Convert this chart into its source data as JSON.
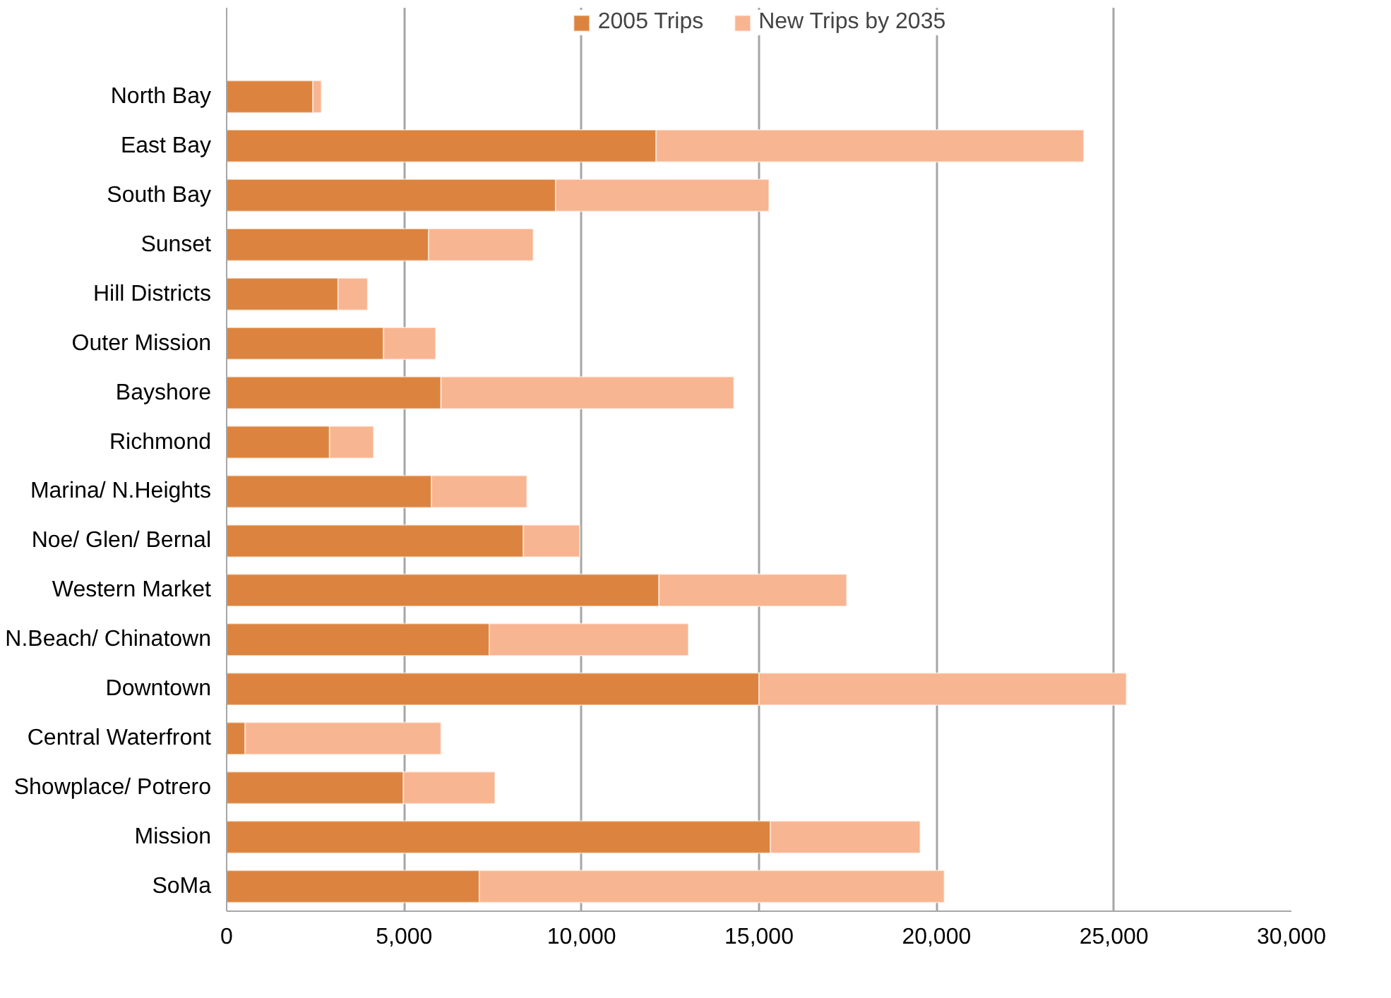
{
  "chart_data": {
    "type": "bar",
    "orientation": "horizontal",
    "stacked": true,
    "categories": [
      "North Bay",
      "East Bay",
      "South Bay",
      "Sunset",
      "Hill Districts",
      "Outer Mission",
      "Bayshore",
      "Richmond",
      "Marina/ N.Heights",
      "Noe/ Glen/ Bernal",
      "Western Market",
      "N.Beach/ Chinatown",
      "Downtown",
      "Central Waterfront",
      "Showplace/ Potrero",
      "Mission",
      "SoMa"
    ],
    "series": [
      {
        "name": "2005 Trips",
        "color": "#dc843f",
        "values": [
          2430,
          12100,
          9270,
          5690,
          3140,
          4420,
          6040,
          2900,
          5770,
          8360,
          12180,
          7400,
          15000,
          520,
          4980,
          15320,
          7120
        ]
      },
      {
        "name": "New Trips by 2035",
        "color": "#f8b591",
        "values": [
          240,
          12050,
          6010,
          2950,
          830,
          1470,
          8250,
          1240,
          2690,
          1590,
          5290,
          5610,
          10350,
          5520,
          2580,
          4220,
          13100
        ]
      }
    ],
    "xlim": [
      0,
      30000
    ],
    "xticks": [
      {
        "value": 0,
        "label": "0"
      },
      {
        "value": 5000,
        "label": "5,000"
      },
      {
        "value": 10000,
        "label": "10,000"
      },
      {
        "value": 15000,
        "label": "15,000"
      },
      {
        "value": 20000,
        "label": "20,000"
      },
      {
        "value": 25000,
        "label": "25,000"
      },
      {
        "value": 30000,
        "label": "30,000"
      }
    ],
    "grid": "x",
    "legend": "top"
  }
}
